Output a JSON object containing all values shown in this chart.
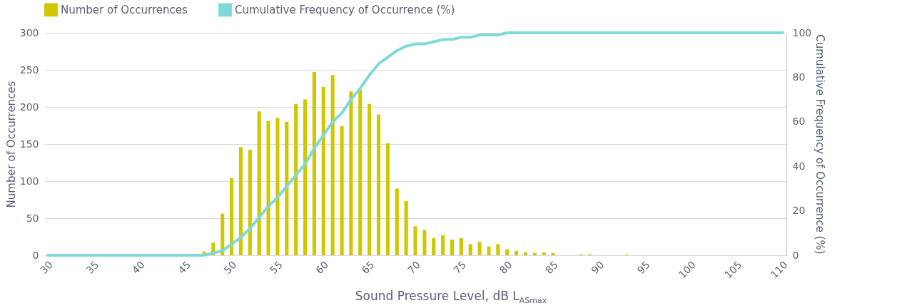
{
  "chart_data": {
    "type": "bar",
    "categories": [
      "30",
      null,
      null,
      null,
      null,
      "35",
      null,
      null,
      null,
      null,
      "40",
      null,
      null,
      null,
      null,
      "45",
      null,
      null,
      null,
      null,
      "50",
      null,
      null,
      null,
      null,
      "55",
      null,
      null,
      null,
      null,
      "60",
      null,
      null,
      null,
      null,
      "65",
      null,
      null,
      null,
      null,
      "70",
      null,
      null,
      null,
      null,
      "75",
      null,
      null,
      null,
      null,
      "80",
      null,
      null,
      null,
      null,
      "85",
      null,
      null,
      null,
      null,
      "90",
      null,
      null,
      null,
      null,
      "95",
      null,
      null,
      null,
      null,
      "100",
      null,
      null,
      null,
      null,
      "105",
      null,
      null,
      null,
      null,
      "110"
    ],
    "series": [
      {
        "name": "Number of Occurrences",
        "color": "#cfc800",
        "values": [
          0,
          0,
          0,
          0,
          0,
          0,
          0,
          0,
          0,
          0,
          0,
          0,
          0,
          0,
          0,
          0,
          0,
          5,
          17,
          56,
          104,
          146,
          142,
          194,
          181,
          185,
          180,
          204,
          210,
          247,
          227,
          243,
          174,
          221,
          223,
          204,
          190,
          151,
          90,
          73,
          39,
          34,
          23,
          27,
          21,
          23,
          15,
          18,
          12,
          15,
          8,
          6,
          4,
          3,
          4,
          3,
          0,
          0,
          1,
          1,
          0,
          0,
          0,
          1,
          0,
          0,
          0,
          0,
          0,
          0,
          0,
          0,
          0,
          0,
          0,
          0,
          0,
          0,
          0,
          0,
          0
        ]
      },
      {
        "name": "Cumulative Frequency of Occurrence (%)",
        "type": "line",
        "axis": "y2",
        "color": "#7fd9d9",
        "values": [
          0,
          0,
          0,
          0,
          0,
          0,
          0,
          0,
          0,
          0,
          0,
          0,
          0,
          0,
          0,
          0,
          0,
          0,
          1,
          2,
          5,
          8,
          12,
          17,
          22,
          26,
          31,
          36,
          41,
          48,
          54,
          60,
          64,
          70,
          75,
          81,
          86,
          89,
          92,
          94,
          95,
          95,
          96,
          97,
          97,
          98,
          98,
          99,
          99,
          99,
          100,
          100,
          100,
          100,
          100,
          100,
          100,
          100,
          100,
          100,
          100,
          100,
          100,
          100,
          100,
          100,
          100,
          100,
          100,
          100,
          100,
          100,
          100,
          100,
          100,
          100,
          100,
          100,
          100,
          100,
          100
        ]
      }
    ],
    "xlabel": "Sound Pressure Level, dB L$_{ASmax}$",
    "ylabel": "Number of Occurrences",
    "y2label": "Cumulative Frequency of Occurrence (%)",
    "ylim": [
      0,
      300
    ],
    "yticks": [
      0,
      50,
      100,
      150,
      200,
      250,
      300
    ],
    "y2lim": [
      0,
      100
    ],
    "y2ticks": [
      0,
      20,
      40,
      60,
      80,
      100
    ],
    "grid": "y",
    "legend": "top"
  }
}
